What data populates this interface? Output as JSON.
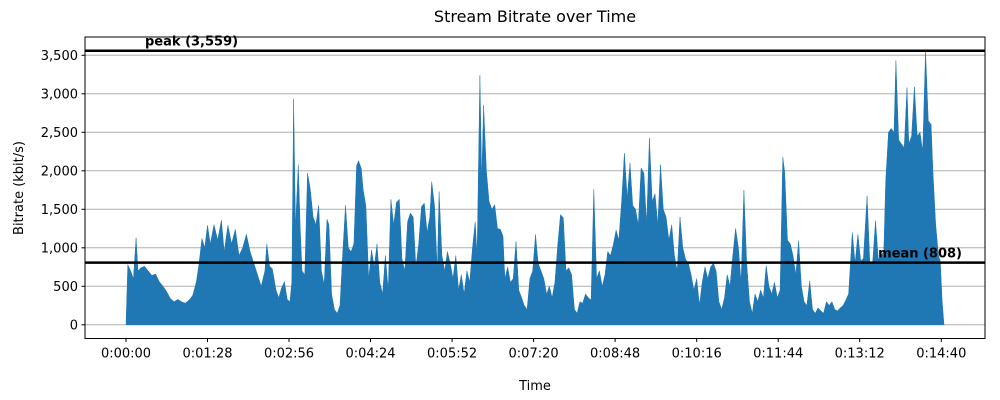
{
  "title": "Stream Bitrate over Time",
  "chart_data": {
    "type": "area",
    "title": "Stream Bitrate over Time",
    "xlabel": "Time",
    "ylabel": "Bitrate (kbit/s)",
    "x_unit": "seconds",
    "xlim": [
      -44.2,
      927.2
    ],
    "ylim": [
      -178,
      3737
    ],
    "grid": "horizontal-only",
    "legend": "none",
    "colors": {
      "fill": "#1f77b4",
      "grid": "#b0b0b0",
      "annotation_line": "#000000",
      "frame": "#000000",
      "text": "#000000"
    },
    "x_ticks": [
      {
        "t": 0,
        "label": "0:00:00"
      },
      {
        "t": 88,
        "label": "0:01:28"
      },
      {
        "t": 176,
        "label": "0:02:56"
      },
      {
        "t": 264,
        "label": "0:04:24"
      },
      {
        "t": 352,
        "label": "0:05:52"
      },
      {
        "t": 440,
        "label": "0:07:20"
      },
      {
        "t": 528,
        "label": "0:08:48"
      },
      {
        "t": 616,
        "label": "0:10:16"
      },
      {
        "t": 704,
        "label": "0:11:44"
      },
      {
        "t": 792,
        "label": "0:13:12"
      },
      {
        "t": 880,
        "label": "0:14:40"
      }
    ],
    "y_ticks": [
      {
        "v": 0,
        "label": "0"
      },
      {
        "v": 500,
        "label": "500"
      },
      {
        "v": 1000,
        "label": "1,000"
      },
      {
        "v": 1500,
        "label": "1,500"
      },
      {
        "v": 2000,
        "label": "2,000"
      },
      {
        "v": 2500,
        "label": "2,500"
      },
      {
        "v": 3000,
        "label": "3,000"
      },
      {
        "v": 3500,
        "label": "3,500"
      }
    ],
    "annotations": [
      {
        "name": "peak",
        "label": "peak (3,559)",
        "value": 3559,
        "label_align": "left"
      },
      {
        "name": "mean",
        "label": "mean (808)",
        "value": 808,
        "label_align": "right"
      }
    ],
    "series": [
      {
        "name": "bitrate",
        "points": [
          [
            0,
            0
          ],
          [
            2,
            780
          ],
          [
            5,
            700
          ],
          [
            8,
            600
          ],
          [
            11,
            1130
          ],
          [
            13,
            700
          ],
          [
            16,
            740
          ],
          [
            20,
            760
          ],
          [
            24,
            700
          ],
          [
            28,
            640
          ],
          [
            32,
            660
          ],
          [
            36,
            560
          ],
          [
            40,
            500
          ],
          [
            44,
            430
          ],
          [
            48,
            340
          ],
          [
            52,
            300
          ],
          [
            56,
            330
          ],
          [
            60,
            300
          ],
          [
            64,
            280
          ],
          [
            68,
            320
          ],
          [
            72,
            380
          ],
          [
            76,
            560
          ],
          [
            79,
            800
          ],
          [
            82,
            1120
          ],
          [
            85,
            1000
          ],
          [
            88,
            1290
          ],
          [
            91,
            1050
          ],
          [
            95,
            1300
          ],
          [
            99,
            1100
          ],
          [
            103,
            1360
          ],
          [
            106,
            950
          ],
          [
            110,
            1290
          ],
          [
            114,
            1050
          ],
          [
            118,
            1240
          ],
          [
            122,
            900
          ],
          [
            126,
            1000
          ],
          [
            130,
            1175
          ],
          [
            134,
            950
          ],
          [
            138,
            800
          ],
          [
            142,
            650
          ],
          [
            146,
            500
          ],
          [
            150,
            700
          ],
          [
            152,
            1050
          ],
          [
            155,
            760
          ],
          [
            158,
            730
          ],
          [
            162,
            450
          ],
          [
            165,
            350
          ],
          [
            168,
            480
          ],
          [
            171,
            560
          ],
          [
            174,
            330
          ],
          [
            177,
            300
          ],
          [
            179,
            550
          ],
          [
            180,
            1700
          ],
          [
            181,
            2930
          ],
          [
            183,
            1270
          ],
          [
            186,
            2080
          ],
          [
            188,
            1300
          ],
          [
            190,
            700
          ],
          [
            193,
            650
          ],
          [
            196,
            1970
          ],
          [
            199,
            1760
          ],
          [
            202,
            1400
          ],
          [
            205,
            1300
          ],
          [
            208,
            1550
          ],
          [
            211,
            700
          ],
          [
            214,
            520
          ],
          [
            217,
            1370
          ],
          [
            219,
            1300
          ],
          [
            222,
            400
          ],
          [
            225,
            200
          ],
          [
            228,
            150
          ],
          [
            231,
            250
          ],
          [
            234,
            950
          ],
          [
            237,
            1550
          ],
          [
            240,
            1000
          ],
          [
            243,
            950
          ],
          [
            246,
            1050
          ],
          [
            249,
            2065
          ],
          [
            251,
            2130
          ],
          [
            254,
            2030
          ],
          [
            256,
            1760
          ],
          [
            259,
            1540
          ],
          [
            262,
            600
          ],
          [
            265,
            970
          ],
          [
            268,
            750
          ],
          [
            271,
            1050
          ],
          [
            274,
            550
          ],
          [
            277,
            400
          ],
          [
            280,
            900
          ],
          [
            283,
            450
          ],
          [
            286,
            1630
          ],
          [
            289,
            1300
          ],
          [
            292,
            1590
          ],
          [
            295,
            1630
          ],
          [
            298,
            850
          ],
          [
            301,
            700
          ],
          [
            304,
            1340
          ],
          [
            307,
            1450
          ],
          [
            310,
            1400
          ],
          [
            313,
            750
          ],
          [
            316,
            1050
          ],
          [
            319,
            1535
          ],
          [
            322,
            1580
          ],
          [
            325,
            1200
          ],
          [
            328,
            1400
          ],
          [
            330,
            1860
          ],
          [
            333,
            1550
          ],
          [
            336,
            700
          ],
          [
            338,
            1730
          ],
          [
            341,
            900
          ],
          [
            344,
            700
          ],
          [
            347,
            950
          ],
          [
            350,
            800
          ],
          [
            353,
            600
          ],
          [
            356,
            900
          ],
          [
            359,
            450
          ],
          [
            362,
            650
          ],
          [
            365,
            400
          ],
          [
            368,
            700
          ],
          [
            371,
            550
          ],
          [
            374,
            1000
          ],
          [
            377,
            1340
          ],
          [
            379,
            900
          ],
          [
            382,
            3240
          ],
          [
            384,
            1900
          ],
          [
            386,
            2850
          ],
          [
            389,
            2000
          ],
          [
            392,
            1600
          ],
          [
            395,
            1500
          ],
          [
            398,
            1560
          ],
          [
            401,
            1250
          ],
          [
            404,
            1240
          ],
          [
            407,
            1150
          ],
          [
            409,
            600
          ],
          [
            412,
            750
          ],
          [
            415,
            550
          ],
          [
            418,
            600
          ],
          [
            421,
            1080
          ],
          [
            424,
            450
          ],
          [
            427,
            350
          ],
          [
            430,
            250
          ],
          [
            433,
            200
          ],
          [
            436,
            600
          ],
          [
            439,
            700
          ],
          [
            442,
            1170
          ],
          [
            445,
            800
          ],
          [
            448,
            700
          ],
          [
            451,
            600
          ],
          [
            454,
            400
          ],
          [
            457,
            500
          ],
          [
            460,
            350
          ],
          [
            463,
            550
          ],
          [
            466,
            1030
          ],
          [
            469,
            1430
          ],
          [
            472,
            1390
          ],
          [
            475,
            700
          ],
          [
            478,
            740
          ],
          [
            481,
            650
          ],
          [
            484,
            200
          ],
          [
            487,
            150
          ],
          [
            490,
            300
          ],
          [
            493,
            280
          ],
          [
            496,
            400
          ],
          [
            499,
            350
          ],
          [
            502,
            320
          ],
          [
            505,
            1760
          ],
          [
            508,
            600
          ],
          [
            511,
            700
          ],
          [
            514,
            500
          ],
          [
            517,
            650
          ],
          [
            520,
            950
          ],
          [
            523,
            900
          ],
          [
            526,
            1040
          ],
          [
            529,
            1230
          ],
          [
            532,
            1100
          ],
          [
            535,
            1600
          ],
          [
            538,
            2230
          ],
          [
            541,
            1650
          ],
          [
            544,
            2100
          ],
          [
            547,
            1550
          ],
          [
            550,
            1500
          ],
          [
            553,
            1300
          ],
          [
            556,
            2035
          ],
          [
            559,
            1970
          ],
          [
            562,
            1300
          ],
          [
            565,
            2425
          ],
          [
            568,
            1600
          ],
          [
            571,
            1700
          ],
          [
            574,
            1300
          ],
          [
            577,
            2080
          ],
          [
            580,
            1500
          ],
          [
            583,
            1400
          ],
          [
            586,
            1100
          ],
          [
            589,
            1300
          ],
          [
            592,
            900
          ],
          [
            595,
            700
          ],
          [
            598,
            1400
          ],
          [
            601,
            1000
          ],
          [
            604,
            850
          ],
          [
            607,
            800
          ],
          [
            610,
            650
          ],
          [
            613,
            450
          ],
          [
            616,
            600
          ],
          [
            619,
            250
          ],
          [
            622,
            550
          ],
          [
            625,
            750
          ],
          [
            628,
            600
          ],
          [
            631,
            750
          ],
          [
            634,
            800
          ],
          [
            637,
            700
          ],
          [
            640,
            300
          ],
          [
            643,
            200
          ],
          [
            646,
            350
          ],
          [
            649,
            650
          ],
          [
            652,
            500
          ],
          [
            655,
            900
          ],
          [
            658,
            1250
          ],
          [
            661,
            1000
          ],
          [
            664,
            550
          ],
          [
            667,
            1750
          ],
          [
            670,
            800
          ],
          [
            673,
            300
          ],
          [
            676,
            150
          ],
          [
            679,
            400
          ],
          [
            682,
            300
          ],
          [
            685,
            450
          ],
          [
            688,
            350
          ],
          [
            691,
            770
          ],
          [
            694,
            500
          ],
          [
            697,
            400
          ],
          [
            700,
            550
          ],
          [
            703,
            350
          ],
          [
            706,
            450
          ],
          [
            709,
            2180
          ],
          [
            711,
            1980
          ],
          [
            714,
            1100
          ],
          [
            717,
            1050
          ],
          [
            720,
            900
          ],
          [
            723,
            650
          ],
          [
            726,
            1090
          ],
          [
            729,
            500
          ],
          [
            732,
            300
          ],
          [
            735,
            250
          ],
          [
            738,
            570
          ],
          [
            741,
            200
          ],
          [
            744,
            150
          ],
          [
            747,
            220
          ],
          [
            750,
            180
          ],
          [
            753,
            150
          ],
          [
            756,
            300
          ],
          [
            759,
            250
          ],
          [
            762,
            300
          ],
          [
            765,
            200
          ],
          [
            768,
            180
          ],
          [
            771,
            220
          ],
          [
            774,
            250
          ],
          [
            777,
            320
          ],
          [
            780,
            400
          ],
          [
            784,
            1200
          ],
          [
            787,
            800
          ],
          [
            790,
            1175
          ],
          [
            793,
            830
          ],
          [
            796,
            860
          ],
          [
            800,
            1675
          ],
          [
            803,
            780
          ],
          [
            806,
            820
          ],
          [
            809,
            1350
          ],
          [
            812,
            850
          ],
          [
            815,
            900
          ],
          [
            818,
            950
          ],
          [
            820,
            1870
          ],
          [
            823,
            2500
          ],
          [
            826,
            2550
          ],
          [
            829,
            2500
          ],
          [
            831,
            3430
          ],
          [
            834,
            2400
          ],
          [
            837,
            2350
          ],
          [
            840,
            2300
          ],
          [
            843,
            3080
          ],
          [
            845,
            2350
          ],
          [
            848,
            2450
          ],
          [
            851,
            3090
          ],
          [
            854,
            2450
          ],
          [
            857,
            2500
          ],
          [
            860,
            2250
          ],
          [
            863,
            3559
          ],
          [
            866,
            2650
          ],
          [
            869,
            2600
          ],
          [
            871,
            2000
          ],
          [
            874,
            1300
          ],
          [
            877,
            900
          ],
          [
            879,
            820
          ],
          [
            881,
            300
          ],
          [
            883,
            0
          ]
        ]
      }
    ]
  }
}
